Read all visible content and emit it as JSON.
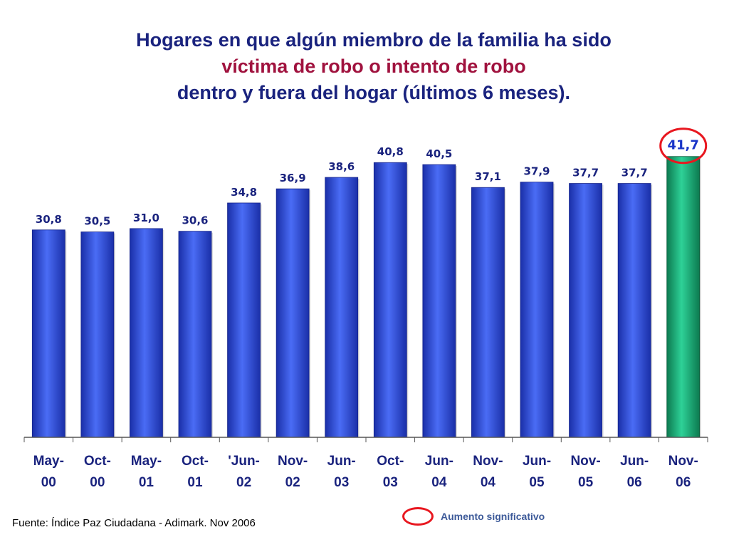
{
  "title": {
    "line1": "Hogares en que algún miembro de la familia ha sido",
    "line2": "víctima de robo o intento de robo",
    "line3": "dentro y fuera del hogar (últimos 6 meses).",
    "line1_color": "#1a237e",
    "line2_color": "#a0123e",
    "line3_color": "#1a237e"
  },
  "chart_data": {
    "type": "bar",
    "categories": [
      [
        "May-",
        "00"
      ],
      [
        "Oct-",
        "00"
      ],
      [
        "May-",
        "01"
      ],
      [
        "Oct-",
        "01"
      ],
      [
        "'Jun-",
        "02"
      ],
      [
        "Nov-",
        "02"
      ],
      [
        "Jun-",
        "03"
      ],
      [
        "Oct-",
        "03"
      ],
      [
        "Jun-",
        "04"
      ],
      [
        "Nov-",
        "04"
      ],
      [
        "Jun-",
        "05"
      ],
      [
        "Nov-",
        "05"
      ],
      [
        "Jun-",
        "06"
      ],
      [
        "Nov-",
        "06"
      ]
    ],
    "values": [
      30.8,
      30.5,
      31.0,
      30.6,
      34.8,
      36.9,
      38.6,
      40.8,
      40.5,
      37.1,
      37.9,
      37.7,
      37.7,
      41.7
    ],
    "value_labels": [
      "30,8",
      "30,5",
      "31,0",
      "30,6",
      "34,8",
      "36,9",
      "38,6",
      "40,8",
      "40,5",
      "37,1",
      "37,9",
      "37,7",
      "37,7",
      "41,7"
    ],
    "highlight_index": 13,
    "bar_color": "#2e4fd6",
    "highlight_color": "#1aa36f",
    "grid": false,
    "legend": false
  },
  "legend_note": {
    "text": "Aumento significativo",
    "marker_color": "#e8171f"
  },
  "source": "Fuente: Índice Paz Ciudadana - Adimark. Nov 2006"
}
